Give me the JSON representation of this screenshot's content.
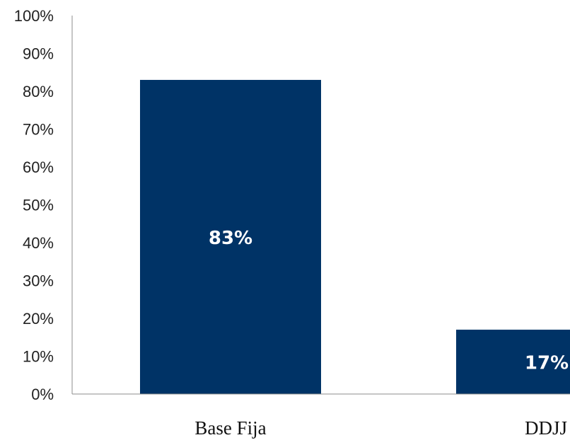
{
  "chart_data": {
    "type": "bar",
    "categories": [
      "Base Fija",
      "DDJJ"
    ],
    "values": [
      83,
      17
    ],
    "data_labels": [
      "83%",
      "17%"
    ],
    "y_ticks": [
      "0%",
      "10%",
      "20%",
      "30%",
      "40%",
      "50%",
      "60%",
      "70%",
      "80%",
      "90%",
      "100%"
    ],
    "ylim": [
      0,
      100
    ],
    "title": "",
    "xlabel": "",
    "ylabel": "",
    "grid": false,
    "legend": "none",
    "bar_color": "#003366"
  }
}
